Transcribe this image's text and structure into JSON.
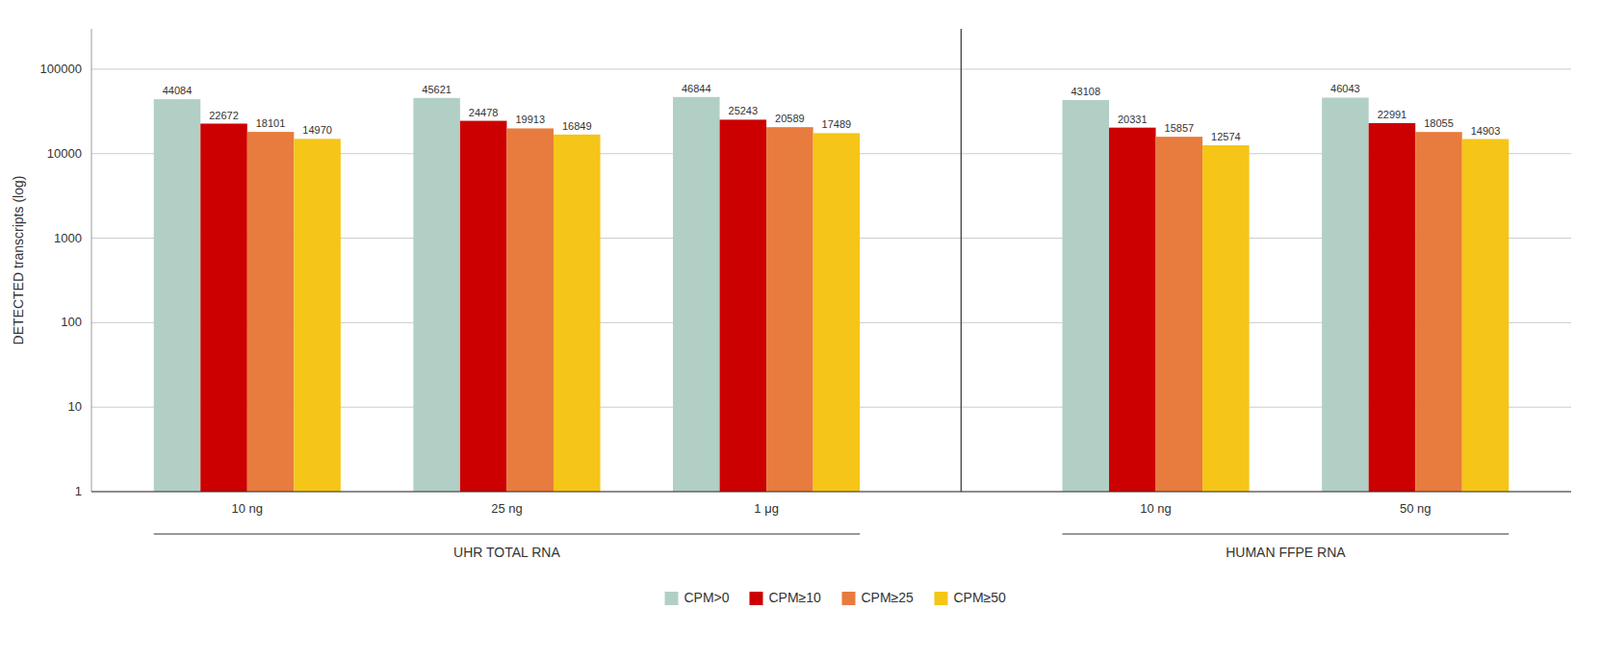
{
  "chart_data": {
    "type": "bar",
    "categories": [
      "10 ng",
      "25 ng",
      "1 μg",
      "10 ng",
      "50 ng"
    ],
    "series": [
      {
        "name": "CPM>0",
        "color": "#b2cfc5",
        "values": [
          44084,
          45621,
          46844,
          43108,
          46043
        ]
      },
      {
        "name": "CPM≥10",
        "color": "#cc0000",
        "values": [
          22672,
          24478,
          25243,
          20331,
          22991
        ]
      },
      {
        "name": "CPM≥25",
        "color": "#e87b3e",
        "values": [
          18101,
          19913,
          20589,
          15857,
          18055
        ]
      },
      {
        "name": "CPM≥50",
        "color": "#f5c518",
        "values": [
          14970,
          16849,
          17489,
          12574,
          14903
        ]
      }
    ],
    "y_label": "DETECTED transcripts (log)",
    "annotations": [
      {
        "text": "UHR TOTAL RNA",
        "span": 3
      },
      {
        "text": "HUMAN FFPE RNA",
        "span": 2
      }
    ],
    "ylim": [
      1,
      300000
    ],
    "yticks": [
      1,
      10,
      100,
      1000,
      10000,
      100000
    ],
    "log": "y",
    "grid": true,
    "data_labels": true,
    "legend": "bottom"
  }
}
